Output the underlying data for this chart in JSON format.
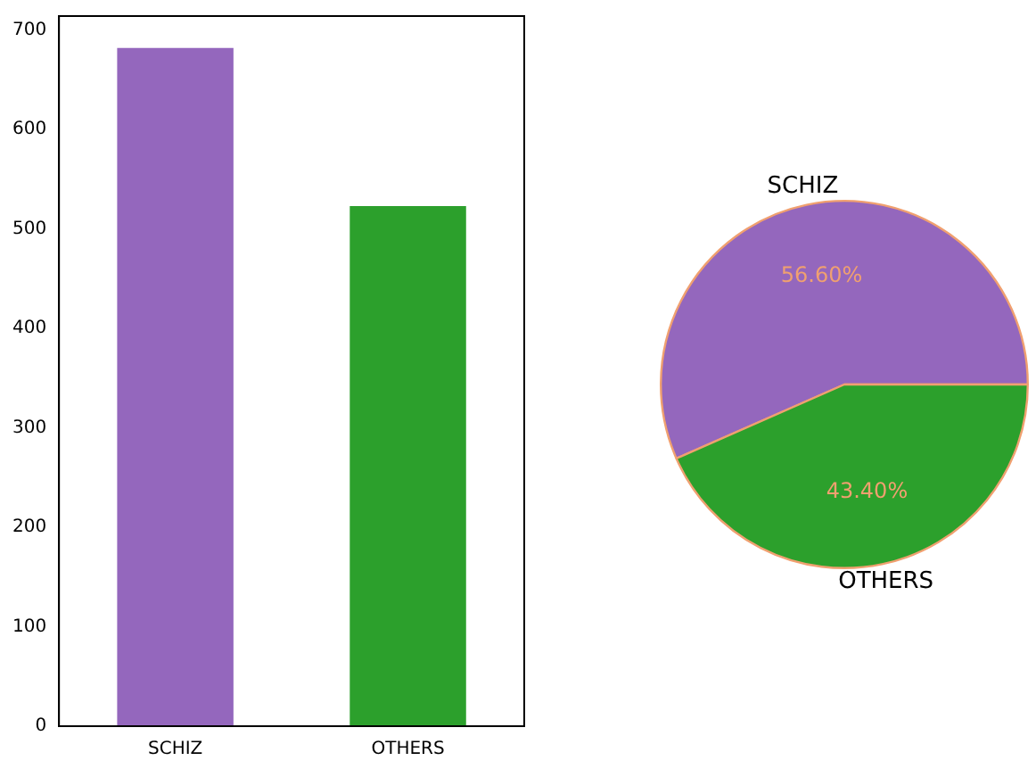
{
  "chart_data": [
    {
      "type": "bar",
      "categories": [
        "SCHIZ",
        "OTHERS"
      ],
      "values": [
        682,
        523
      ],
      "colors": [
        "#9467bd",
        "#2ca02c"
      ],
      "ylim": [
        0,
        714
      ],
      "yticks": [
        0,
        100,
        200,
        300,
        400,
        500,
        600,
        700
      ],
      "grid": false,
      "legend": false
    },
    {
      "type": "pie",
      "categories": [
        "SCHIZ",
        "OTHERS"
      ],
      "values": [
        56.6,
        43.4
      ],
      "colors": [
        "#9467bd",
        "#2ca02c"
      ],
      "value_labels": [
        "56.60%",
        "43.40%"
      ],
      "legend": false
    }
  ]
}
